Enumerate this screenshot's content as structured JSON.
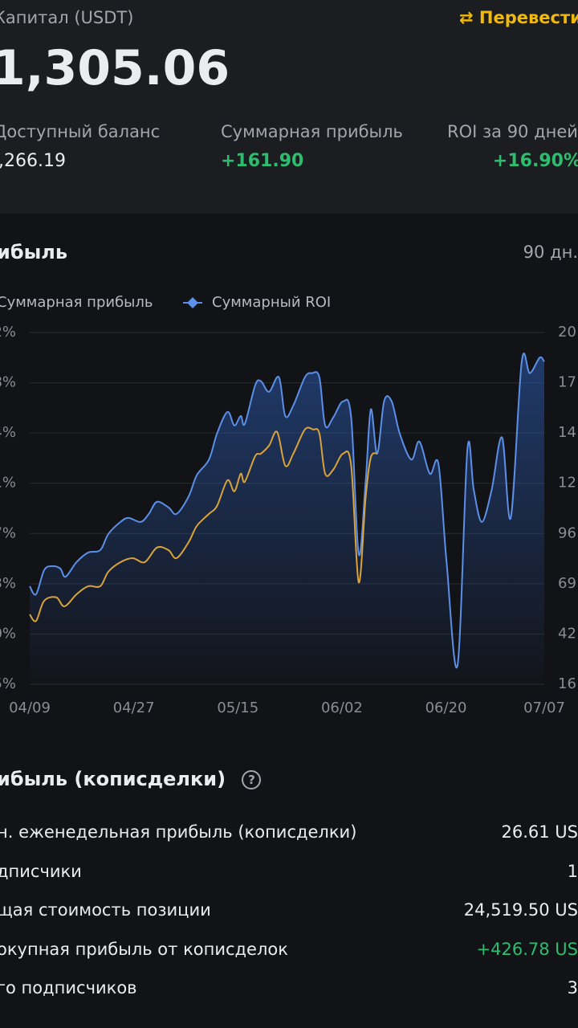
{
  "header": {
    "capital_label": "Капитал (USDT)",
    "transfer": "Перевести",
    "capital_value": "1,305.06",
    "stats": [
      {
        "label": "Доступный баланс",
        "value": ",266.19"
      },
      {
        "label": "Суммарная прибыль",
        "value": "+161.90"
      },
      {
        "label": "ROI за 90 дней",
        "value": "+16.90%"
      }
    ]
  },
  "chart_section": {
    "title": "ибыль",
    "period": "90 дн."
  },
  "chart_data": {
    "type": "line",
    "xlim": [
      0,
      89
    ],
    "xticks": [
      {
        "value": 0,
        "label": "04/09"
      },
      {
        "value": 18,
        "label": "04/27"
      },
      {
        "value": 36,
        "label": "05/15"
      },
      {
        "value": 54,
        "label": "06/02"
      },
      {
        "value": 72,
        "label": "06/20"
      },
      {
        "value": 89,
        "label": "07/07"
      }
    ],
    "ylim": [
      0,
      7
    ],
    "yticks": [
      {
        "value": 0,
        "label": "5%"
      },
      {
        "value": 1,
        "label": "0%"
      },
      {
        "value": 2,
        "label": "3%"
      },
      {
        "value": 3,
        "label": "7%"
      },
      {
        "value": 4,
        "label": "1%"
      },
      {
        "value": 5,
        "label": "4%"
      },
      {
        "value": 6,
        "label": "8%"
      },
      {
        "value": 7,
        "label": "2%"
      }
    ],
    "y2lim": [
      0,
      7
    ],
    "y2ticks": [
      {
        "value": 0,
        "label": "16"
      },
      {
        "value": 1,
        "label": "42"
      },
      {
        "value": 2,
        "label": "69"
      },
      {
        "value": 3,
        "label": "96"
      },
      {
        "value": 4,
        "label": "12"
      },
      {
        "value": 5,
        "label": "14"
      },
      {
        "value": 6,
        "label": "17"
      },
      {
        "value": 7,
        "label": "20"
      }
    ],
    "grid": true,
    "series": [
      {
        "name": "Суммарная прибыль",
        "color": "#d9a33a",
        "x": [
          0,
          1.1,
          2.5,
          4.6,
          6.0,
          8.1,
          10.1,
          12.2,
          13.6,
          15.7,
          17.8,
          19.9,
          22,
          24.0,
          25.4,
          27.5,
          28.9,
          31,
          32.4,
          34.2,
          35.4,
          36.5,
          37.2,
          39,
          40,
          41.4,
          42.8,
          44.2,
          45.6,
          47.6,
          49,
          50.1,
          51.1,
          52.5,
          54.2,
          55.6,
          56.9,
          58.1,
          59,
          60.1
        ],
        "values": [
          1.39,
          1.26,
          1.66,
          1.73,
          1.55,
          1.79,
          1.95,
          1.95,
          2.24,
          2.43,
          2.51,
          2.43,
          2.72,
          2.67,
          2.51,
          2.83,
          3.15,
          3.39,
          3.55,
          4.06,
          3.84,
          4.19,
          4.03,
          4.54,
          4.59,
          4.75,
          5.02,
          4.35,
          4.59,
          5.07,
          5.07,
          4.99,
          4.19,
          4.27,
          4.59,
          4.35,
          2.03,
          3.71,
          4.51,
          4.59
        ]
      },
      {
        "name": "Суммарный ROI",
        "color": "#5b8fe8",
        "x": [
          0,
          1.1,
          2.5,
          3.9,
          5.3,
          6.2,
          8.1,
          10.1,
          12.2,
          13.6,
          15.7,
          17.1,
          19.2,
          20.6,
          22,
          24.0,
          25.4,
          27.5,
          28.9,
          31,
          32.4,
          34.2,
          35.4,
          36.5,
          37.2,
          39,
          40,
          41.4,
          43.1,
          44.2,
          45.6,
          47.6,
          48.8,
          50.1,
          51.1,
          52.5,
          54.2,
          55.6,
          56.9,
          58.1,
          59,
          60.1,
          61.3,
          62.6,
          64,
          66,
          67.4,
          69.2,
          70.7,
          72.1,
          74,
          75.7,
          76.8,
          78.2,
          79.9,
          81.7,
          83.2,
          85.1,
          86.5,
          88.2,
          89
        ],
        "values": [
          1.95,
          1.79,
          2.27,
          2.35,
          2.3,
          2.14,
          2.43,
          2.62,
          2.67,
          2.99,
          3.23,
          3.31,
          3.23,
          3.39,
          3.63,
          3.52,
          3.39,
          3.74,
          4.16,
          4.47,
          4.99,
          5.42,
          5.15,
          5.34,
          5.18,
          5.95,
          6.03,
          5.82,
          6.11,
          5.34,
          5.55,
          6.11,
          6.19,
          6.11,
          5.15,
          5.31,
          5.63,
          5.31,
          2.59,
          4.03,
          5.47,
          4.59,
          5.63,
          5.63,
          4.99,
          4.47,
          4.83,
          4.19,
          4.38,
          2.43,
          0.38,
          4.67,
          3.87,
          3.23,
          3.87,
          4.91,
          3.31,
          6.42,
          6.19,
          6.5,
          6.42
        ]
      }
    ]
  },
  "copy_section": {
    "title": "ибыль (кописделки)",
    "rows": [
      [
        "н. еженедельная прибыль (кописделки)",
        "26.61 US"
      ],
      [
        "дписчики",
        "1"
      ],
      [
        "щая стоимость позиции",
        "24,519.50 US"
      ],
      [
        "окупная прибыль от кописделок",
        "+426.78 US"
      ],
      [
        "го подписчиков",
        "3"
      ]
    ]
  }
}
